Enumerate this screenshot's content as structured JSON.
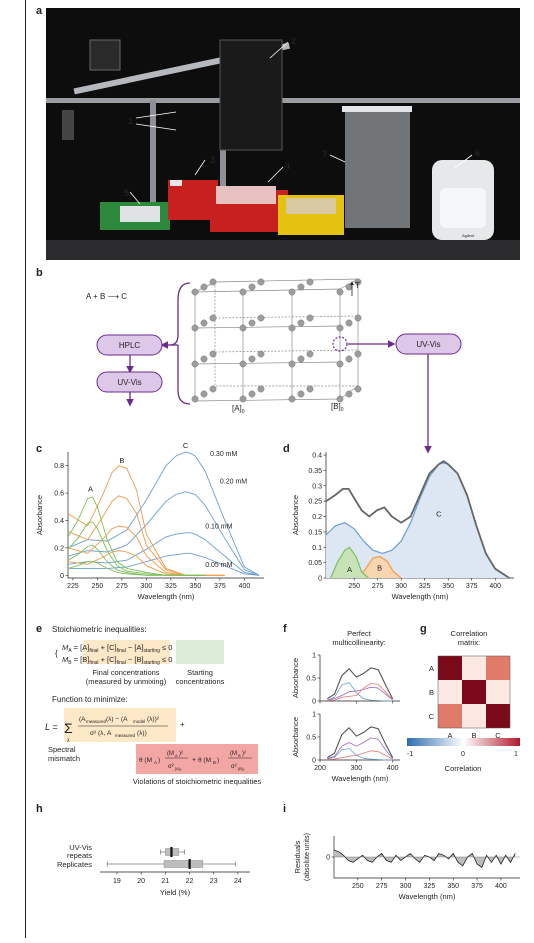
{
  "panels": {
    "a": {
      "label": "a",
      "callouts": [
        "1",
        "2",
        "3",
        "4",
        "5",
        "6",
        "7"
      ],
      "instrument_text": "Agilent"
    },
    "b": {
      "label": "b",
      "reaction": "A + B ⟶ C",
      "hplc": "HPLC",
      "uvvis_left": "UV-Vis",
      "uvvis_right": "UV-Vis",
      "axis_a": "[A]",
      "axis_a_sub": "0",
      "axis_b": "[B]",
      "axis_b_sub": "0",
      "axis_t": "T"
    },
    "c": {
      "label": "c"
    },
    "d": {
      "label": "d"
    },
    "e": {
      "label": "e",
      "stoich_title": "Stoichiometric inequalities:",
      "final_label_1": "Final concentrations",
      "final_label_2": "(measured by unmixing)",
      "starting_label_1": "Starting",
      "starting_label_2": "concentrations",
      "minimize_title": "Function to minimize:",
      "spectral_1": "Spectral",
      "spectral_2": "mismatch",
      "violations": "Violations of stoichiometric inequalities"
    },
    "f": {
      "label": "f",
      "title_1": "Perfect",
      "title_2": "multicollinearity:"
    },
    "g": {
      "label": "g",
      "title_1": "Correlation",
      "title_2": "matrix:",
      "colorbar_label": "Correlation"
    },
    "h": {
      "label": "h"
    },
    "i": {
      "label": "i"
    }
  },
  "chart_data": [
    {
      "panel": "c",
      "type": "line",
      "xlabel": "Wavelength (nm)",
      "ylabel": "Absorbance",
      "xlim": [
        220,
        420
      ],
      "ylim": [
        -0.02,
        0.9
      ],
      "xticks": [
        225,
        250,
        275,
        300,
        325,
        350,
        375,
        400
      ],
      "yticks": [
        0,
        0.2,
        0.4,
        0.6,
        0.8
      ],
      "annotations": [
        "A",
        "B",
        "C",
        "0.30 mM",
        "0.20 mM",
        "0.10 mM",
        "0.05 mM"
      ],
      "series": [
        {
          "color": "#6a9fd0",
          "x": [
            220,
            240,
            260,
            280,
            300,
            320,
            330,
            340,
            345,
            350,
            360,
            380,
            400,
            415
          ],
          "y": [
            0.2,
            0.26,
            0.25,
            0.33,
            0.55,
            0.8,
            0.87,
            0.9,
            0.89,
            0.87,
            0.76,
            0.4,
            0.06,
            0.0
          ]
        },
        {
          "color": "#6a9fd0",
          "x": [
            220,
            240,
            260,
            280,
            300,
            320,
            330,
            340,
            345,
            350,
            360,
            380,
            400,
            415
          ],
          "y": [
            0.14,
            0.18,
            0.17,
            0.22,
            0.37,
            0.54,
            0.59,
            0.61,
            0.6,
            0.59,
            0.51,
            0.27,
            0.04,
            0.0
          ]
        },
        {
          "color": "#6a9fd0",
          "x": [
            220,
            240,
            260,
            280,
            300,
            320,
            330,
            340,
            345,
            350,
            360,
            380,
            400,
            415
          ],
          "y": [
            0.08,
            0.1,
            0.09,
            0.11,
            0.19,
            0.28,
            0.3,
            0.31,
            0.31,
            0.3,
            0.26,
            0.14,
            0.02,
            0.0
          ]
        },
        {
          "color": "#6a9fd0",
          "x": [
            220,
            240,
            260,
            280,
            300,
            320,
            330,
            340,
            345,
            350,
            360,
            380,
            400,
            415
          ],
          "y": [
            0.05,
            0.05,
            0.05,
            0.06,
            0.1,
            0.14,
            0.15,
            0.16,
            0.16,
            0.15,
            0.13,
            0.07,
            0.01,
            0.0
          ]
        },
        {
          "color": "#f39a47",
          "x": [
            220,
            240,
            255,
            265,
            272,
            280,
            290,
            300,
            320,
            340,
            360,
            380
          ],
          "y": [
            0.45,
            0.36,
            0.58,
            0.75,
            0.8,
            0.78,
            0.62,
            0.3,
            0.05,
            0.0,
            0.0,
            0.0
          ]
        },
        {
          "color": "#f39a47",
          "x": [
            220,
            240,
            255,
            265,
            272,
            280,
            290,
            300,
            320,
            340,
            360,
            380
          ],
          "y": [
            0.32,
            0.26,
            0.42,
            0.54,
            0.58,
            0.56,
            0.45,
            0.22,
            0.04,
            0.0,
            0.0,
            0.0
          ]
        },
        {
          "color": "#f39a47",
          "x": [
            220,
            240,
            255,
            265,
            272,
            280,
            290,
            300,
            320,
            340,
            360,
            380
          ],
          "y": [
            0.2,
            0.16,
            0.26,
            0.34,
            0.36,
            0.35,
            0.28,
            0.14,
            0.02,
            0.0,
            0.0,
            0.0
          ]
        },
        {
          "color": "#f39a47",
          "x": [
            220,
            240,
            255,
            265,
            272,
            280,
            290,
            300,
            320,
            340,
            360,
            380
          ],
          "y": [
            0.1,
            0.08,
            0.13,
            0.17,
            0.18,
            0.17,
            0.14,
            0.07,
            0.01,
            0.0,
            0.0,
            0.0
          ]
        },
        {
          "color": "#7fbf5a",
          "x": [
            220,
            230,
            240,
            245,
            250,
            260,
            270,
            280,
            300,
            320,
            360
          ],
          "y": [
            0.28,
            0.4,
            0.56,
            0.57,
            0.5,
            0.26,
            0.1,
            0.05,
            0.02,
            0.0,
            0.0
          ]
        },
        {
          "color": "#7fbf5a",
          "x": [
            220,
            230,
            240,
            245,
            250,
            260,
            270,
            280,
            300,
            320,
            360
          ],
          "y": [
            0.19,
            0.27,
            0.38,
            0.39,
            0.34,
            0.18,
            0.07,
            0.03,
            0.01,
            0.0,
            0.0
          ]
        },
        {
          "color": "#7fbf5a",
          "x": [
            220,
            230,
            240,
            245,
            250,
            260,
            270,
            280,
            300,
            320,
            360
          ],
          "y": [
            0.11,
            0.15,
            0.21,
            0.22,
            0.19,
            0.1,
            0.04,
            0.02,
            0.0,
            0.0,
            0.0
          ]
        },
        {
          "color": "#7fbf5a",
          "x": [
            220,
            230,
            240,
            245,
            250,
            260,
            270,
            280,
            300,
            320,
            360
          ],
          "y": [
            0.05,
            0.07,
            0.1,
            0.1,
            0.09,
            0.05,
            0.02,
            0.01,
            0.0,
            0.0,
            0.0
          ]
        }
      ]
    },
    {
      "panel": "d",
      "type": "area",
      "xlabel": "Wavelength (nm)",
      "ylabel": "Absorbance",
      "xlim": [
        220,
        420
      ],
      "ylim": [
        0,
        0.41
      ],
      "xticks": [
        250,
        275,
        300,
        325,
        350,
        375,
        400
      ],
      "yticks": [
        0,
        0.05,
        0.1,
        0.15,
        0.2,
        0.25,
        0.3,
        0.35,
        0.4
      ],
      "annotations": [
        "A",
        "B",
        "C"
      ],
      "series": [
        {
          "color": "#6a9fd0",
          "fill": "#dce7f3",
          "x": [
            220,
            230,
            240,
            250,
            260,
            270,
            280,
            290,
            300,
            310,
            320,
            330,
            340,
            345,
            350,
            360,
            370,
            380,
            390,
            400,
            410,
            415
          ],
          "y": [
            0.14,
            0.17,
            0.18,
            0.16,
            0.12,
            0.09,
            0.08,
            0.09,
            0.12,
            0.18,
            0.26,
            0.33,
            0.37,
            0.375,
            0.37,
            0.34,
            0.27,
            0.17,
            0.08,
            0.03,
            0.01,
            0.0
          ]
        },
        {
          "color": "#f39a47",
          "fill": "#f9d5b0",
          "x": [
            255,
            262,
            270,
            277,
            285,
            292,
            300
          ],
          "y": [
            0.0,
            0.03,
            0.065,
            0.07,
            0.055,
            0.02,
            0.0
          ]
        },
        {
          "color": "#7fbf5a",
          "fill": "#c6e2b6",
          "x": [
            225,
            232,
            240,
            245,
            252,
            258,
            265
          ],
          "y": [
            0.0,
            0.05,
            0.09,
            0.1,
            0.07,
            0.02,
            0.0
          ]
        },
        {
          "color": "#666666",
          "x": [
            220,
            230,
            238,
            244,
            250,
            258,
            266,
            274,
            282,
            290,
            300,
            310,
            320,
            330,
            340,
            345,
            350,
            360,
            370,
            380,
            390,
            400,
            410,
            415
          ],
          "y": [
            0.25,
            0.27,
            0.29,
            0.29,
            0.26,
            0.22,
            0.2,
            0.22,
            0.23,
            0.2,
            0.18,
            0.2,
            0.27,
            0.34,
            0.37,
            0.38,
            0.37,
            0.34,
            0.27,
            0.17,
            0.08,
            0.03,
            0.01,
            0.0
          ]
        }
      ]
    },
    {
      "panel": "f",
      "type": "line",
      "xlabel": "Wavelength (nm)",
      "ylabel": "Absorbance",
      "xlim": [
        200,
        420
      ],
      "xticks": [
        200,
        300,
        400
      ],
      "ylim": [
        0,
        1.0
      ],
      "yticks": [
        0,
        0.5,
        1.0
      ],
      "subplots": [
        {
          "series": [
            {
              "color": "#555555",
              "x": [
                220,
                240,
                260,
                280,
                300,
                320,
                340,
                360,
                380,
                400
              ],
              "y": [
                0.05,
                0.15,
                0.55,
                0.7,
                0.52,
                0.6,
                0.72,
                0.68,
                0.35,
                0.05
              ]
            },
            {
              "color": "#6a9fd0",
              "x": [
                220,
                240,
                260,
                280,
                300,
                320,
                340,
                360,
                380,
                400
              ],
              "y": [
                0.02,
                0.08,
                0.35,
                0.4,
                0.18,
                0.05,
                0.02,
                0.01,
                0.0,
                0.0
              ]
            },
            {
              "color": "#9c6ab8",
              "x": [
                220,
                240,
                260,
                280,
                300,
                320,
                340,
                360,
                380,
                400
              ],
              "y": [
                0.02,
                0.05,
                0.12,
                0.2,
                0.22,
                0.25,
                0.3,
                0.28,
                0.15,
                0.02
              ]
            },
            {
              "color": "#e07b7b",
              "x": [
                220,
                240,
                260,
                280,
                300,
                320,
                340,
                360,
                380,
                400
              ],
              "y": [
                0.01,
                0.02,
                0.08,
                0.1,
                0.12,
                0.28,
                0.38,
                0.36,
                0.2,
                0.03
              ]
            }
          ]
        },
        {
          "series": [
            {
              "color": "#555555",
              "x": [
                220,
                240,
                260,
                280,
                300,
                320,
                340,
                360,
                380,
                400
              ],
              "y": [
                0.05,
                0.15,
                0.55,
                0.7,
                0.52,
                0.6,
                0.72,
                0.68,
                0.35,
                0.05
              ]
            },
            {
              "color": "#6a9fd0",
              "x": [
                220,
                240,
                260,
                280,
                300,
                320,
                340,
                360,
                380,
                400
              ],
              "y": [
                0.02,
                0.06,
                0.22,
                0.25,
                0.1,
                0.04,
                0.02,
                0.01,
                0.0,
                0.0
              ]
            },
            {
              "color": "#9c6ab8",
              "x": [
                220,
                240,
                260,
                280,
                300,
                320,
                340,
                360,
                380,
                400
              ],
              "y": [
                0.03,
                0.08,
                0.3,
                0.38,
                0.3,
                0.38,
                0.48,
                0.45,
                0.22,
                0.03
              ]
            },
            {
              "color": "#e07b7b",
              "x": [
                220,
                240,
                260,
                280,
                300,
                320,
                340,
                360,
                380,
                400
              ],
              "y": [
                0.01,
                0.02,
                0.05,
                0.08,
                0.1,
                0.15,
                0.2,
                0.18,
                0.1,
                0.02
              ]
            }
          ]
        }
      ]
    },
    {
      "panel": "g",
      "type": "heatmap",
      "categories": [
        "A",
        "B",
        "C"
      ],
      "values": [
        [
          1,
          0,
          -0.2
        ],
        [
          0,
          1,
          0
        ],
        [
          -0.2,
          0,
          1
        ]
      ],
      "colorbar_ticks": [
        "-1",
        "0",
        "1"
      ],
      "colorbar_colors": [
        "#2c6db0",
        "#ffffff",
        "#b2182b"
      ]
    },
    {
      "panel": "h",
      "type": "box",
      "xlabel": "Yield (%)",
      "xlim": [
        18.3,
        24.5
      ],
      "xticks": [
        19,
        20,
        21,
        22,
        23,
        24
      ],
      "categories": [
        "UV-Vis repeats",
        "Replicates"
      ],
      "series": [
        {
          "name": "UV-Vis repeats",
          "whisker": [
            20.8,
            21.8
          ],
          "box": [
            21.0,
            21.55
          ],
          "median": 21.25
        },
        {
          "name": "Replicates",
          "whisker": [
            18.6,
            23.9
          ],
          "box": [
            20.95,
            22.55
          ],
          "median": 22.0
        }
      ]
    },
    {
      "panel": "i",
      "type": "area",
      "xlabel": "Wavelength (nm)",
      "ylabel": "Residuals (absolute units)",
      "xlim": [
        225,
        420
      ],
      "xticks": [
        250,
        275,
        300,
        325,
        350,
        375,
        400
      ],
      "ylim": [
        -0.012,
        0.012
      ],
      "yticks": [
        0
      ],
      "x": [
        225,
        230,
        235,
        240,
        245,
        250,
        255,
        260,
        265,
        270,
        275,
        280,
        285,
        290,
        295,
        300,
        305,
        310,
        315,
        320,
        325,
        330,
        335,
        340,
        345,
        350,
        355,
        360,
        365,
        370,
        375,
        380,
        385,
        390,
        395,
        400,
        405,
        410,
        415
      ],
      "y": [
        0.004,
        0.003,
        0.001,
        -0.002,
        -0.003,
        -0.001,
        0.001,
        -0.002,
        -0.003,
        0.0,
        0.002,
        -0.002,
        -0.003,
        0.001,
        -0.002,
        0.0,
        0.002,
        -0.001,
        -0.003,
        0.001,
        0.0,
        -0.002,
        0.002,
        0.001,
        -0.001,
        0.002,
        -0.003,
        -0.005,
        0.0,
        0.002,
        -0.004,
        -0.006,
        0.001,
        -0.003,
        0.001,
        -0.004,
        0.001,
        -0.003,
        0.002
      ]
    }
  ]
}
